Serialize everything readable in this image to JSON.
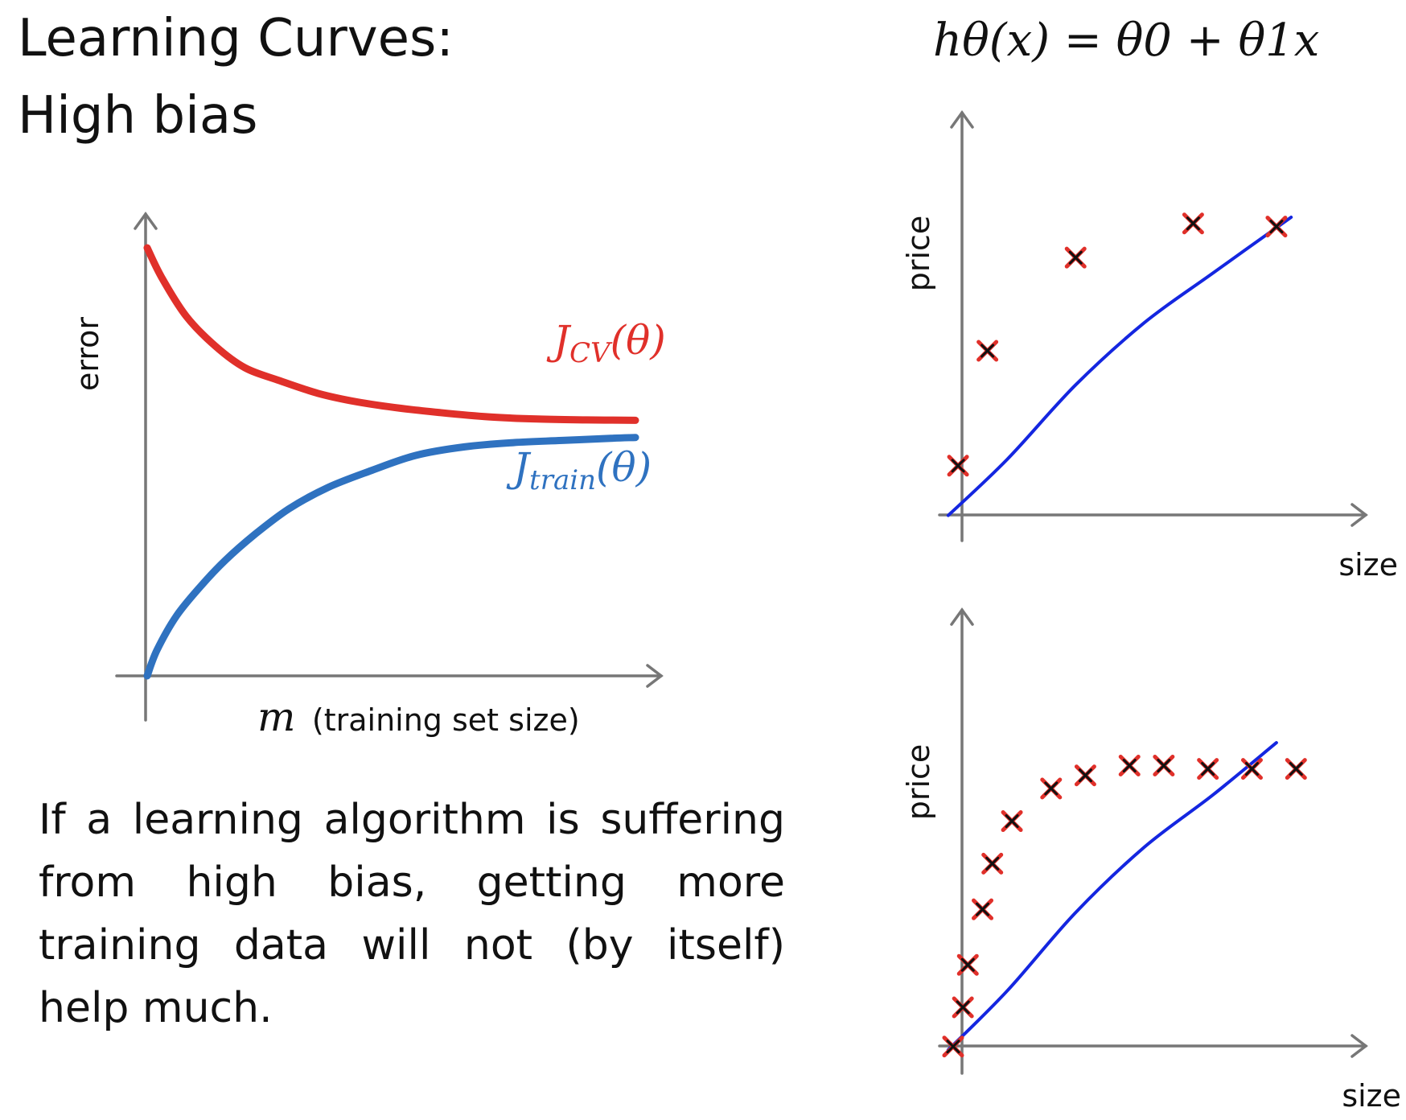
{
  "slide": {
    "title_line1": "Learning Curves:",
    "title_line2": "High bias",
    "formula": "hθ(x) = θ0 + θ1x",
    "caption": "If a learning algorithm is suffering from high bias, getting more training data will not (by itself) help much."
  },
  "colors": {
    "cv": "#e0302a",
    "train": "#2f72c0",
    "fit": "#1426e0",
    "cross_outer": "#e0302a",
    "cross_inner": "#111111"
  },
  "chart_data": [
    {
      "type": "line",
      "xlabel_symbol": "m",
      "xlabel": "(training set size)",
      "ylabel": "error",
      "series": [
        {
          "name": "J_CV(θ)",
          "label_main": "J",
          "label_sub": "CV",
          "label_tail": "(θ)",
          "x": [
            0,
            0.03,
            0.08,
            0.14,
            0.2,
            0.27,
            0.35,
            0.43,
            0.52,
            0.6,
            0.7,
            0.8,
            0.9,
            1.0
          ],
          "values": [
            1.0,
            0.93,
            0.84,
            0.77,
            0.72,
            0.69,
            0.66,
            0.64,
            0.625,
            0.615,
            0.605,
            0.6,
            0.598,
            0.597
          ]
        },
        {
          "name": "J_train(θ)",
          "label_main": "J",
          "label_sub": "train",
          "label_tail": "(θ)",
          "x": [
            0,
            0.02,
            0.06,
            0.11,
            0.16,
            0.22,
            0.29,
            0.37,
            0.46,
            0.55,
            0.65,
            0.75,
            0.85,
            0.95,
            1.0
          ],
          "values": [
            0.0,
            0.06,
            0.14,
            0.21,
            0.27,
            0.33,
            0.39,
            0.44,
            0.48,
            0.515,
            0.535,
            0.545,
            0.55,
            0.555,
            0.557
          ]
        }
      ]
    },
    {
      "type": "scatter",
      "xlabel": "size",
      "ylabel": "price",
      "points": [
        {
          "x": 0.12,
          "y": 0.2
        },
        {
          "x": 0.18,
          "y": 0.57
        },
        {
          "x": 0.36,
          "y": 0.87
        },
        {
          "x": 0.6,
          "y": 0.98
        },
        {
          "x": 0.77,
          "y": 0.97
        }
      ],
      "fit": {
        "x": [
          0.1,
          0.22,
          0.36,
          0.5,
          0.64,
          0.8
        ],
        "y": [
          0.04,
          0.22,
          0.46,
          0.66,
          0.82,
          1.0
        ]
      }
    },
    {
      "type": "scatter",
      "xlabel": "size",
      "ylabel": "price",
      "points": [
        {
          "x": 0.11,
          "y": 0.05
        },
        {
          "x": 0.13,
          "y": 0.17
        },
        {
          "x": 0.14,
          "y": 0.3
        },
        {
          "x": 0.17,
          "y": 0.47
        },
        {
          "x": 0.19,
          "y": 0.61
        },
        {
          "x": 0.23,
          "y": 0.74
        },
        {
          "x": 0.31,
          "y": 0.84
        },
        {
          "x": 0.38,
          "y": 0.88
        },
        {
          "x": 0.47,
          "y": 0.91
        },
        {
          "x": 0.54,
          "y": 0.91
        },
        {
          "x": 0.63,
          "y": 0.9
        },
        {
          "x": 0.72,
          "y": 0.9
        },
        {
          "x": 0.81,
          "y": 0.9
        }
      ],
      "fit": {
        "x": [
          0.1,
          0.22,
          0.36,
          0.5,
          0.64,
          0.77
        ],
        "y": [
          0.04,
          0.22,
          0.46,
          0.66,
          0.82,
          0.98
        ]
      }
    }
  ]
}
